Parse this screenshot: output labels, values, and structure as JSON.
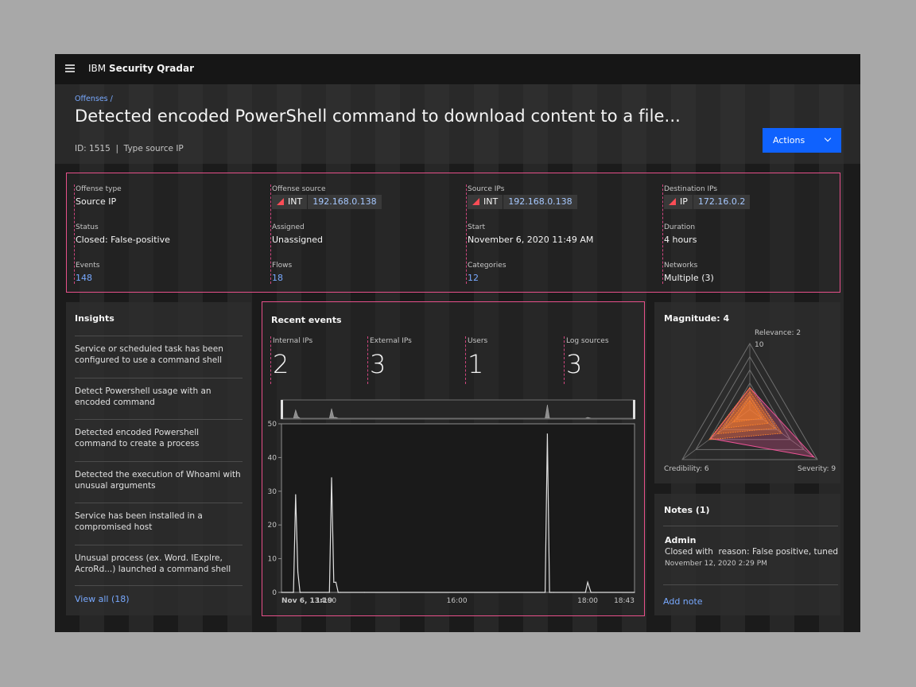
{
  "topbar": {
    "brand_prefix": "IBM",
    "brand_name": "Security Qradar"
  },
  "header": {
    "breadcrumb": "Offenses /",
    "title": "Detected encoded PowerShell command to download content to a file...",
    "meta": "ID: 1515  |  Type source IP",
    "actions_label": "Actions"
  },
  "summary": {
    "offense_type": {
      "label": "Offense type",
      "value": "Source IP"
    },
    "status": {
      "label": "Status",
      "value": "Closed: False-positive"
    },
    "events": {
      "label": "Events",
      "value": "148"
    },
    "offense_source": {
      "label": "Offense source",
      "tag": "INT",
      "ip": "192.168.0.138"
    },
    "assigned": {
      "label": "Assigned",
      "value": "Unassigned"
    },
    "flows": {
      "label": "Flows",
      "value": "18"
    },
    "source_ips": {
      "label": "Source IPs",
      "tag": "INT",
      "ip": "192.168.0.138"
    },
    "start": {
      "label": "Start",
      "value": "November 6, 2020 11:49 AM"
    },
    "categories": {
      "label": "Categories",
      "value": "12"
    },
    "destination_ips": {
      "label": "Destination IPs",
      "tag": "IP",
      "ip": "172.16.0.2"
    },
    "duration": {
      "label": "Duration",
      "value": "4 hours"
    },
    "networks": {
      "label": "Networks",
      "value": "Multiple (3)"
    }
  },
  "insights": {
    "title": "Insights",
    "items": [
      "Service or scheduled task has been configured to use a command shell",
      "Detect Powershell usage with an encoded command",
      "Detected encoded Powershell command to  create a process",
      "Detected the execution of Whoami with unusual arguments",
      "Service has been installed in a compromised host",
      "Unusual process (ex. Word. IExplre, AcroRd...) launched a command shell"
    ],
    "view_all": "View all (18)"
  },
  "recent_events": {
    "title": "Recent events",
    "stats": [
      {
        "label": "Internal IPs",
        "value": "2"
      },
      {
        "label": "External IPs",
        "value": "3"
      },
      {
        "label": "Users",
        "value": "1"
      },
      {
        "label": "Log sources",
        "value": "3"
      }
    ]
  },
  "magnitude": {
    "title": "Magnitude: 4",
    "relevance_label": "Relevance: 2",
    "max_label": "10",
    "credibility_label": "Credibility: 6",
    "severity_label": "Severity: 9",
    "accent": "#ff832b",
    "severity_color": "#ee5396"
  },
  "notes": {
    "title": "Notes (1)",
    "author": "Admin",
    "text": "Closed with  reason: False positive, tuned",
    "time": "November 12, 2020 2:29 PM",
    "add_label": "Add note"
  },
  "chart_data": {
    "type": "line",
    "title": "",
    "xlabel": "",
    "ylabel": "",
    "ylim": [
      0,
      50
    ],
    "yticks": [
      0,
      10,
      20,
      30,
      40,
      50
    ],
    "xticks": [
      "Nov 6, 13:19",
      "14:00",
      "16:00",
      "18:00",
      "18:43"
    ],
    "xlim": [
      "13:19",
      "18:43"
    ],
    "grid": false,
    "series": [
      {
        "x": [
          "13:19",
          "13:30",
          "13:32",
          "13:34",
          "13:36",
          "13:37",
          "14:03",
          "14:05",
          "14:07",
          "14:09",
          "14:11",
          "14:13",
          "14:35",
          "17:21",
          "17:23",
          "17:25",
          "17:27",
          "17:29",
          "17:58",
          "18:00",
          "18:03",
          "18:43"
        ],
        "values": [
          0,
          0,
          29,
          6,
          0,
          0,
          0,
          34,
          3,
          3,
          0,
          0,
          0,
          0,
          47,
          0,
          0,
          0,
          0,
          3,
          0,
          0
        ]
      }
    ]
  }
}
